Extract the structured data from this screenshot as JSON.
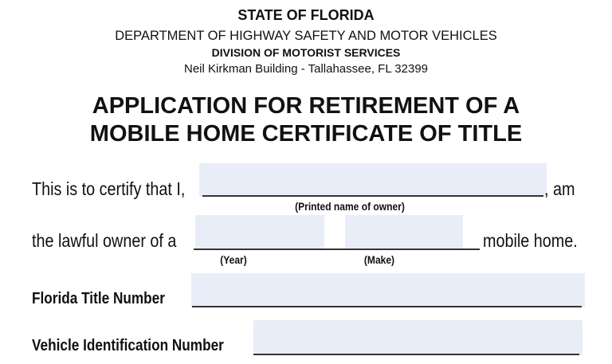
{
  "header": {
    "state": "STATE OF FLORIDA",
    "department": "DEPARTMENT OF HIGHWAY SAFETY AND MOTOR VEHICLES",
    "division": "DIVISION OF MOTORIST SERVICES",
    "address": "Neil Kirkman Building - Tallahassee, FL 32399"
  },
  "title": {
    "line1": "APPLICATION FOR RETIREMENT OF A",
    "line2": "MOBILE HOME CERTIFICATE OF TITLE"
  },
  "form": {
    "certify_prefix": "This is to certify that I,",
    "certify_suffix": ", am",
    "owner_name": {
      "value": "",
      "caption": "(Printed name of owner)"
    },
    "owner_prefix": "the lawful owner of a",
    "owner_suffix": "mobile home.",
    "year": {
      "value": "",
      "caption": "(Year)"
    },
    "make": {
      "value": "",
      "caption": "(Make)"
    },
    "title_number": {
      "label": "Florida Title Number",
      "value": ""
    },
    "vin": {
      "label": "Vehicle Identification Number",
      "value": ""
    }
  },
  "colors": {
    "field_fill": "#e8edf8"
  }
}
